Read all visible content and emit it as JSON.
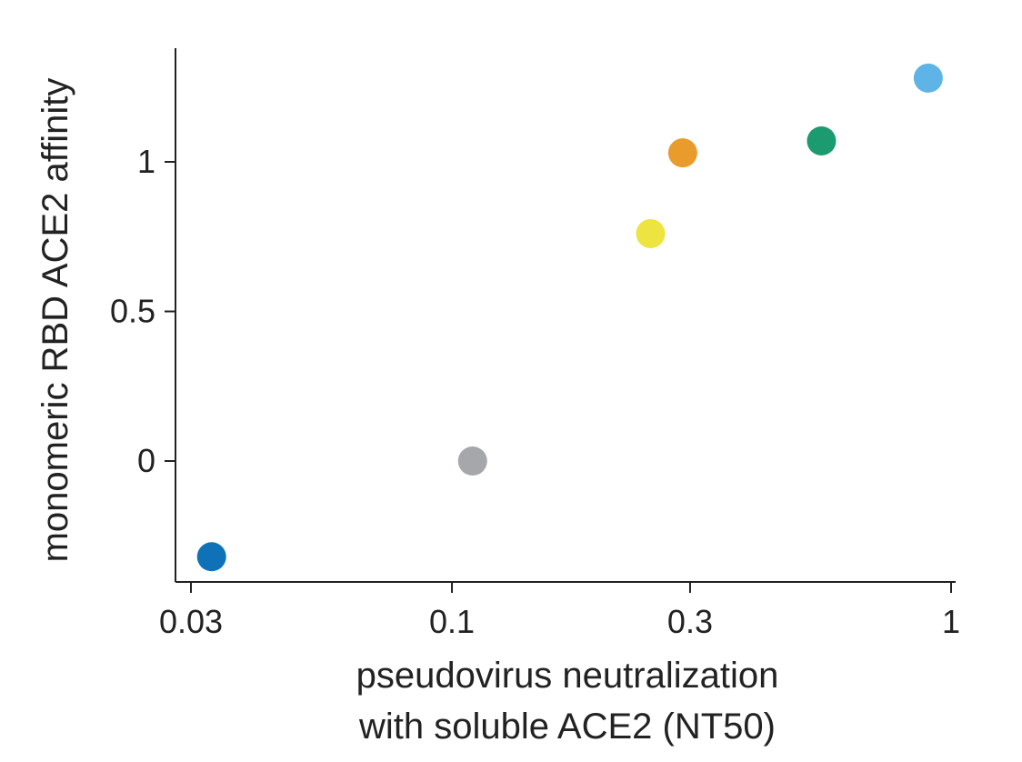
{
  "chart_data": {
    "type": "scatter",
    "title": "",
    "xlabel_lines": [
      "pseudovirus neutralization",
      "with soluble ACE2 (NT50)"
    ],
    "ylabel": "monomeric RBD ACE2 affinity",
    "x_scale": "log",
    "xlim": [
      0.03,
      1
    ],
    "ylim": [
      -0.38,
      1.38
    ],
    "x_ticks": [
      0.03,
      0.1,
      0.3,
      1
    ],
    "x_tick_labels": [
      "0.03",
      "0.1",
      "0.3",
      "1"
    ],
    "y_ticks": [
      0,
      0.5,
      1
    ],
    "y_tick_labels": [
      "0",
      "0.5",
      "1"
    ],
    "grid": false,
    "legend": "none",
    "points": [
      {
        "x": 0.033,
        "y": -0.32,
        "color": "#0f72b8"
      },
      {
        "x": 0.11,
        "y": 0.0,
        "color": "#a6a7aa"
      },
      {
        "x": 0.25,
        "y": 0.76,
        "color": "#ede442"
      },
      {
        "x": 0.29,
        "y": 1.03,
        "color": "#e99b2b"
      },
      {
        "x": 0.55,
        "y": 1.07,
        "color": "#1b9b6f"
      },
      {
        "x": 0.9,
        "y": 1.28,
        "color": "#5eb4e7"
      }
    ]
  }
}
